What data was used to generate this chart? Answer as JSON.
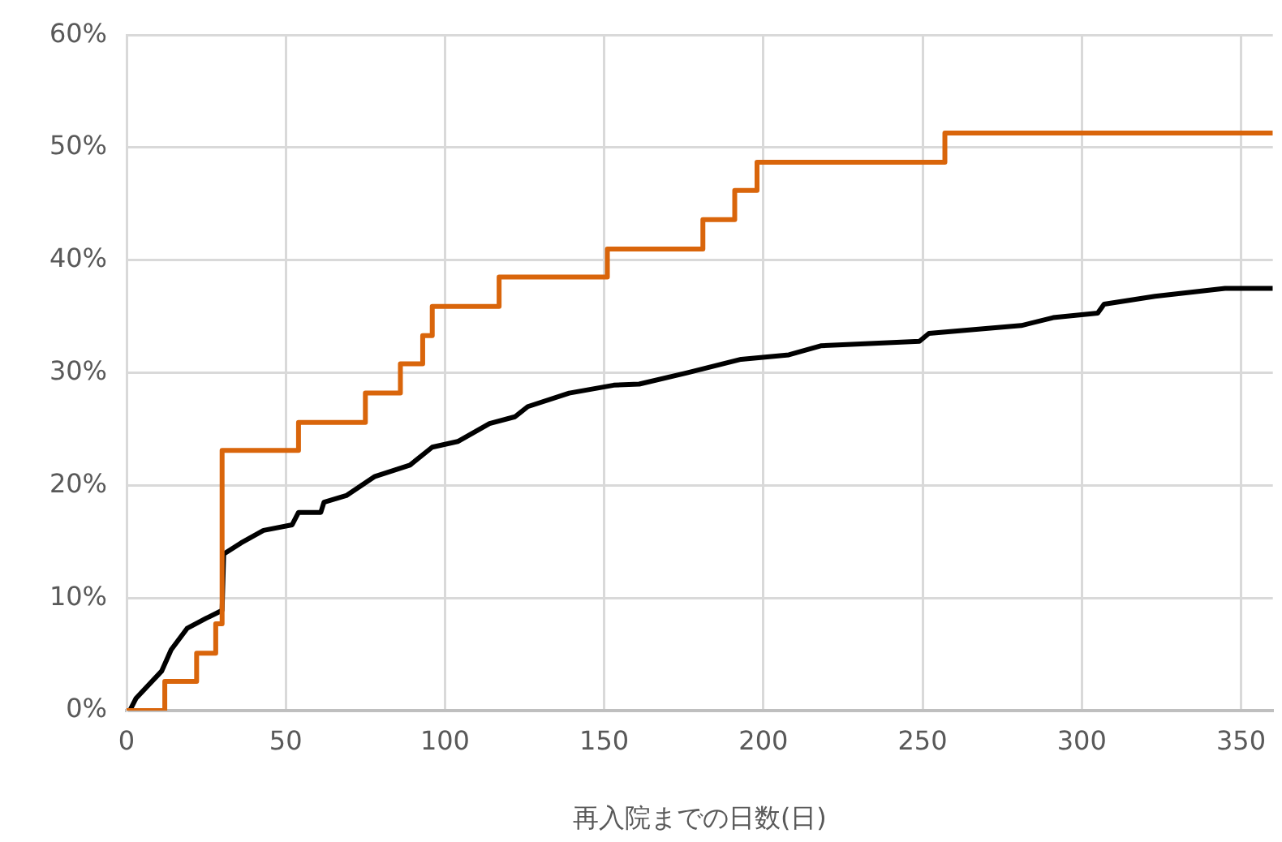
{
  "chart_data": {
    "type": "line",
    "xlabel": "再入院までの日数(日)",
    "xlim": [
      0,
      360
    ],
    "xticks": [
      0,
      50,
      100,
      150,
      200,
      250,
      300,
      350
    ],
    "ylim": [
      0,
      60
    ],
    "yticks": [
      {
        "value": 0,
        "label": "0%"
      },
      {
        "value": 10,
        "label": "10%"
      },
      {
        "value": 20,
        "label": "20%"
      },
      {
        "value": 30,
        "label": "30%"
      },
      {
        "value": 40,
        "label": "40%"
      },
      {
        "value": 50,
        "label": "50%"
      },
      {
        "value": 60,
        "label": "60%"
      }
    ],
    "grid": true,
    "legend": false,
    "marker": "none",
    "line_style": "solid",
    "series": [
      {
        "type": "step",
        "color": "#d9650b",
        "x": [
          0,
          12,
          22,
          28,
          30,
          54,
          75,
          86,
          93,
          96,
          117,
          151,
          181,
          191,
          198,
          257,
          360
        ],
        "values": [
          0,
          2.6,
          5.1,
          7.7,
          23.1,
          25.6,
          28.2,
          30.8,
          33.3,
          35.9,
          38.5,
          41.0,
          43.6,
          46.2,
          48.7,
          51.3,
          51.3
        ]
      },
      {
        "type": "line",
        "color": "#000000",
        "x": [
          1,
          3,
          11,
          14,
          19,
          25,
          30,
          30.5,
          36,
          43,
          52,
          54,
          61,
          62,
          69,
          78,
          89,
          96,
          104,
          114,
          122,
          126,
          139,
          153,
          161,
          176,
          193,
          208,
          218,
          249,
          252,
          281,
          291,
          305,
          307,
          323,
          345,
          360
        ],
        "values": [
          0,
          1.1,
          3.5,
          5.4,
          7.3,
          8.2,
          8.9,
          13.9,
          14.9,
          16.0,
          16.5,
          17.6,
          17.6,
          18.5,
          19.1,
          20.8,
          21.8,
          23.4,
          23.9,
          25.5,
          26.1,
          27.0,
          28.2,
          28.9,
          29.0,
          30.0,
          31.2,
          31.6,
          32.4,
          32.8,
          33.5,
          34.2,
          34.9,
          35.3,
          36.1,
          36.8,
          37.5,
          37.5
        ]
      }
    ]
  }
}
